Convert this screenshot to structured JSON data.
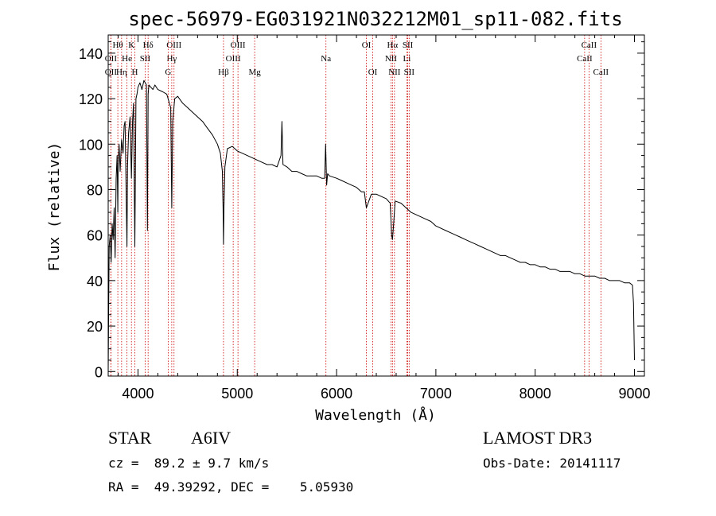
{
  "chart_data": {
    "type": "line",
    "title": "spec-56979-EG031921N032212M01_sp11-082.fits",
    "xlabel": "Wavelength (Å)",
    "ylabel": "Flux (relative)",
    "xlim": [
      3700,
      9100
    ],
    "ylim": [
      -2,
      148
    ],
    "xticks": [
      4000,
      5000,
      6000,
      7000,
      8000,
      9000
    ],
    "yticks": [
      0,
      20,
      40,
      60,
      80,
      100,
      120,
      140
    ],
    "series": [
      {
        "name": "flux",
        "x": [
          3700,
          3705,
          3710,
          3720,
          3730,
          3740,
          3750,
          3760,
          3770,
          3780,
          3790,
          3797,
          3800,
          3810,
          3820,
          3835,
          3850,
          3860,
          3870,
          3889,
          3895,
          3905,
          3920,
          3934,
          3945,
          3955,
          3968,
          3980,
          3990,
          4000,
          4020,
          4040,
          4060,
          4085,
          4095,
          4102,
          4110,
          4130,
          4150,
          4170,
          4200,
          4250,
          4290,
          4330,
          4340,
          4350,
          4370,
          4400,
          4450,
          4500,
          4550,
          4600,
          4650,
          4700,
          4750,
          4800,
          4830,
          4850,
          4857,
          4861,
          4866,
          4875,
          4900,
          4950,
          5000,
          5050,
          5100,
          5150,
          5200,
          5250,
          5300,
          5350,
          5400,
          5440,
          5450,
          5460,
          5500,
          5550,
          5600,
          5650,
          5700,
          5750,
          5800,
          5850,
          5880,
          5890,
          5900,
          5910,
          5930,
          6000,
          6050,
          6100,
          6150,
          6200,
          6250,
          6280,
          6300,
          6350,
          6400,
          6450,
          6500,
          6540,
          6555,
          6563,
          6570,
          6590,
          6650,
          6700,
          6750,
          6800,
          6850,
          6900,
          6950,
          7000,
          7050,
          7100,
          7150,
          7200,
          7250,
          7300,
          7350,
          7400,
          7450,
          7500,
          7550,
          7600,
          7650,
          7700,
          7750,
          7800,
          7850,
          7900,
          7950,
          8000,
          8050,
          8100,
          8150,
          8200,
          8250,
          8300,
          8350,
          8400,
          8450,
          8500,
          8550,
          8600,
          8650,
          8700,
          8750,
          8800,
          8850,
          8900,
          8950,
          8980,
          8990,
          9000
        ],
        "values": [
          0,
          28,
          55,
          60,
          48,
          65,
          58,
          72,
          50,
          85,
          95,
          70,
          90,
          100,
          88,
          102,
          96,
          108,
          110,
          55,
          90,
          105,
          112,
          85,
          110,
          118,
          55,
          120,
          122,
          125,
          127,
          124,
          128,
          126,
          62,
          122,
          126,
          125,
          124,
          126,
          124,
          123,
          122,
          116,
          72,
          110,
          120,
          121,
          118,
          116,
          114,
          112,
          110,
          107,
          104,
          100,
          96,
          88,
          72,
          56,
          72,
          90,
          98,
          99,
          97,
          96,
          95,
          94,
          93,
          92,
          91,
          91,
          90,
          95,
          110,
          91,
          90,
          88,
          88,
          87,
          86,
          86,
          86,
          85,
          85,
          100,
          82,
          87,
          86,
          85,
          84,
          83,
          82,
          81,
          79,
          79,
          72,
          78,
          78,
          77,
          76,
          74,
          60,
          58,
          62,
          75,
          74,
          72,
          70,
          69,
          68,
          67,
          66,
          64,
          63,
          62,
          61,
          60,
          59,
          58,
          57,
          56,
          55,
          54,
          53,
          52,
          51,
          51,
          50,
          49,
          48,
          48,
          47,
          47,
          46,
          46,
          45,
          45,
          44,
          44,
          44,
          43,
          43,
          42,
          42,
          42,
          41,
          41,
          40,
          40,
          40,
          39,
          39,
          38,
          30,
          5
        ]
      }
    ],
    "lines": [
      {
        "label": "Hθ",
        "wavelength": 3797,
        "row": 1
      },
      {
        "label": "OII",
        "wavelength": 3727,
        "row": 2
      },
      {
        "label": "OII",
        "wavelength": 3727,
        "row": 3
      },
      {
        "label": "Hη",
        "wavelength": 3835,
        "row": 3
      },
      {
        "label": "K",
        "wavelength": 3934,
        "row": 1
      },
      {
        "label": "He",
        "wavelength": 3889,
        "row": 2
      },
      {
        "label": "H",
        "wavelength": 3968,
        "row": 3
      },
      {
        "label": "SII",
        "wavelength": 4072,
        "row": 2
      },
      {
        "label": "Hδ",
        "wavelength": 4102,
        "row": 1
      },
      {
        "label": "OIII",
        "wavelength": 4363,
        "row": 1
      },
      {
        "label": "Hγ",
        "wavelength": 4340,
        "row": 2
      },
      {
        "label": "G",
        "wavelength": 4304,
        "row": 3
      },
      {
        "label": "Hβ",
        "wavelength": 4861,
        "row": 3
      },
      {
        "label": "OIII",
        "wavelength": 5007,
        "row": 1
      },
      {
        "label": "OIII",
        "wavelength": 4959,
        "row": 2
      },
      {
        "label": "Mg",
        "wavelength": 5175,
        "row": 3
      },
      {
        "label": "Na",
        "wavelength": 5893,
        "row": 2
      },
      {
        "label": "OI",
        "wavelength": 6300,
        "row": 1
      },
      {
        "label": "OI",
        "wavelength": 6364,
        "row": 3
      },
      {
        "label": "Hα",
        "wavelength": 6563,
        "row": 1
      },
      {
        "label": "NII",
        "wavelength": 6548,
        "row": 2
      },
      {
        "label": "NII",
        "wavelength": 6583,
        "row": 3
      },
      {
        "label": "SII",
        "wavelength": 6717,
        "row": 1
      },
      {
        "label": "Li",
        "wavelength": 6708,
        "row": 2
      },
      {
        "label": "SII",
        "wavelength": 6731,
        "row": 3
      },
      {
        "label": "CaII",
        "wavelength": 8542,
        "row": 1
      },
      {
        "label": "CaII",
        "wavelength": 8498,
        "row": 2
      },
      {
        "label": "CaII",
        "wavelength": 8662,
        "row": 3
      }
    ]
  },
  "info": {
    "object_class": "STAR",
    "subclass": "A6IV",
    "survey": "LAMOST DR3",
    "redshift": "cz =  89.2 ± 9.7 km/s",
    "obs_date": "Obs-Date: 20141117",
    "coords": "RA =  49.39292, DEC =    5.05930"
  },
  "colors": {
    "spectrum": "#000000",
    "line_markers": "#cc0000",
    "text": "#000000"
  }
}
